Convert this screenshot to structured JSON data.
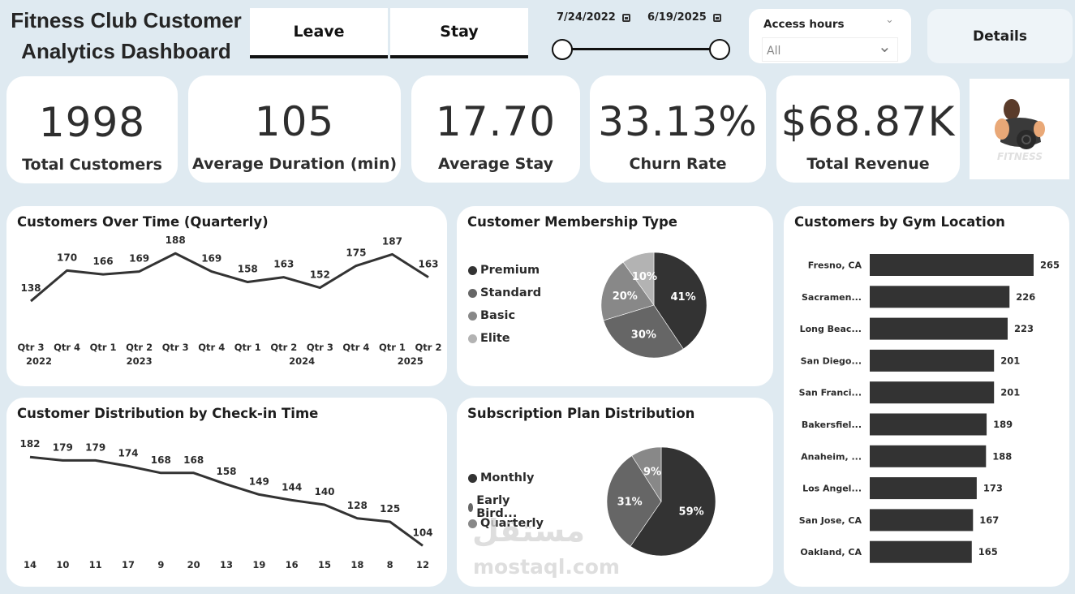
{
  "header": {
    "title": "Fitness Club Customer Analytics Dashboard",
    "toggle": [
      "Leave",
      "Stay"
    ],
    "date_start": "7/24/2022",
    "date_end": "6/19/2025",
    "range_fraction": [
      0,
      1
    ],
    "access_hours": {
      "label": "Access hours",
      "value": "All"
    },
    "details_label": "Details"
  },
  "kpis": [
    {
      "value": "1998",
      "label": "Total Customers"
    },
    {
      "value": "105",
      "label": "Average Duration (min)"
    },
    {
      "value": "17.70",
      "label": "Average Stay"
    },
    {
      "value": "33.13%",
      "label": "Churn Rate"
    },
    {
      "value": "$68.87K",
      "label": "Total Revenue"
    }
  ],
  "logo": {
    "text": "FITNESS",
    "icon": "bodybuilder-dumbbell-logo"
  },
  "watermark": {
    "arabic": "مستقل",
    "latin": "mostaql.com"
  },
  "chart_data": [
    {
      "type": "line",
      "title": "Customers Over Time (Quarterly)",
      "categories": [
        "Qtr 3",
        "Qtr 4",
        "Qtr 1",
        "Qtr 2",
        "Qtr 3",
        "Qtr 4",
        "Qtr 1",
        "Qtr 2",
        "Qtr 3",
        "Qtr 4",
        "Qtr 1",
        "Qtr 2"
      ],
      "years": [
        {
          "label": "2022",
          "index": 0
        },
        {
          "label": "2023",
          "index": 3
        },
        {
          "label": "2024",
          "index": 7.5
        },
        {
          "label": "2025",
          "index": 10.5
        }
      ],
      "values": [
        138,
        170,
        166,
        169,
        188,
        169,
        158,
        163,
        152,
        175,
        187,
        163
      ],
      "ylim": [
        110,
        195
      ]
    },
    {
      "type": "line",
      "title": "Customer Distribution by Check-in Time",
      "categories": [
        "14",
        "10",
        "11",
        "17",
        "9",
        "20",
        "13",
        "19",
        "16",
        "15",
        "18",
        "8",
        "12"
      ],
      "values": [
        182,
        179,
        179,
        174,
        168,
        168,
        158,
        149,
        144,
        140,
        128,
        125,
        104
      ],
      "ylim": [
        100,
        190
      ]
    },
    {
      "type": "pie",
      "title": "Customer Membership Type",
      "labels": [
        "Premium",
        "Standard",
        "Basic",
        "Elite"
      ],
      "values": [
        41,
        30,
        20,
        10
      ],
      "colors": [
        "#333333",
        "#666666",
        "#888888",
        "#b3b3b3"
      ]
    },
    {
      "type": "pie",
      "title": "Subscription Plan Distribution",
      "labels": [
        "Monthly",
        "Early Bird...",
        "Quarterly"
      ],
      "values": [
        59,
        31,
        9
      ],
      "colors": [
        "#333333",
        "#666666",
        "#888888"
      ]
    },
    {
      "type": "bar",
      "title": "Customers by Gym Location",
      "categories": [
        "Fresno, CA",
        "Sacramen...",
        "Long Beac...",
        "San Diego...",
        "San Franci...",
        "Bakersfiel...",
        "Anaheim, ...",
        "Los Angel...",
        "San Jose, CA",
        "Oakland, CA"
      ],
      "values": [
        265,
        226,
        223,
        201,
        201,
        189,
        188,
        173,
        167,
        165
      ],
      "color": "#333333",
      "xlim": [
        0,
        265
      ]
    }
  ]
}
